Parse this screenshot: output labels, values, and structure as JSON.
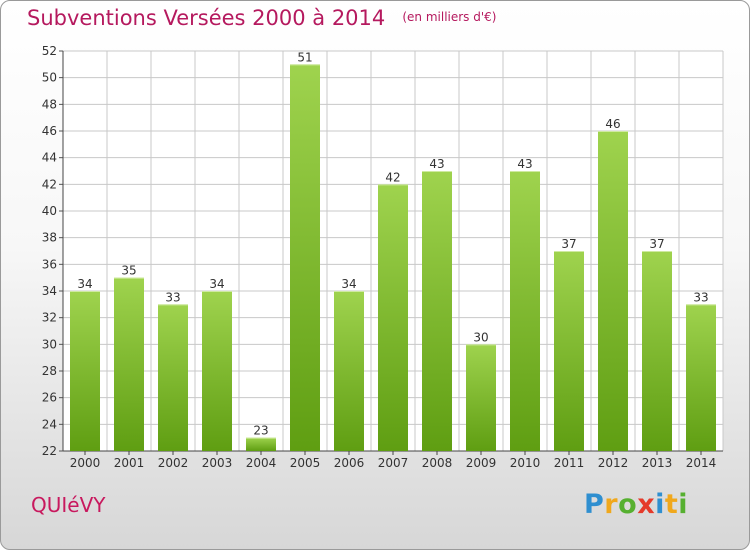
{
  "title": "Subventions Versées 2000 à 2014",
  "subtitle": "(en milliers d'€)",
  "commune": "QUIéVY",
  "logo": {
    "letters": [
      {
        "ch": "P",
        "color": "#2f8fd0"
      },
      {
        "ch": "r",
        "color": "#f0a81c"
      },
      {
        "ch": "o",
        "color": "#56b030"
      },
      {
        "ch": "x",
        "color": "#e53a2a"
      },
      {
        "ch": "i",
        "color": "#2f8fd0"
      },
      {
        "ch": "t",
        "color": "#f0a81c"
      },
      {
        "ch": "i",
        "color": "#56b030"
      }
    ]
  },
  "colors": {
    "bar_top": "#9fd34e",
    "bar_bottom": "#5f9e12",
    "title": "#b5195e",
    "grid": "#c8c8c8"
  },
  "chart_data": {
    "type": "bar",
    "title": "Subventions Versées 2000 à 2014",
    "subtitle": "(en milliers d'€)",
    "categories": [
      "2000",
      "2001",
      "2002",
      "2003",
      "2004",
      "2005",
      "2006",
      "2007",
      "2008",
      "2009",
      "2010",
      "2011",
      "2012",
      "2013",
      "2014"
    ],
    "values": [
      34,
      35,
      33,
      34,
      23,
      51,
      34,
      42,
      43,
      30,
      43,
      37,
      46,
      37,
      33
    ],
    "ylim": [
      22,
      52
    ],
    "yticks": [
      22,
      24,
      26,
      28,
      30,
      32,
      34,
      36,
      38,
      40,
      42,
      44,
      46,
      48,
      50,
      52
    ],
    "grid": true,
    "xlabel": "",
    "ylabel": ""
  }
}
